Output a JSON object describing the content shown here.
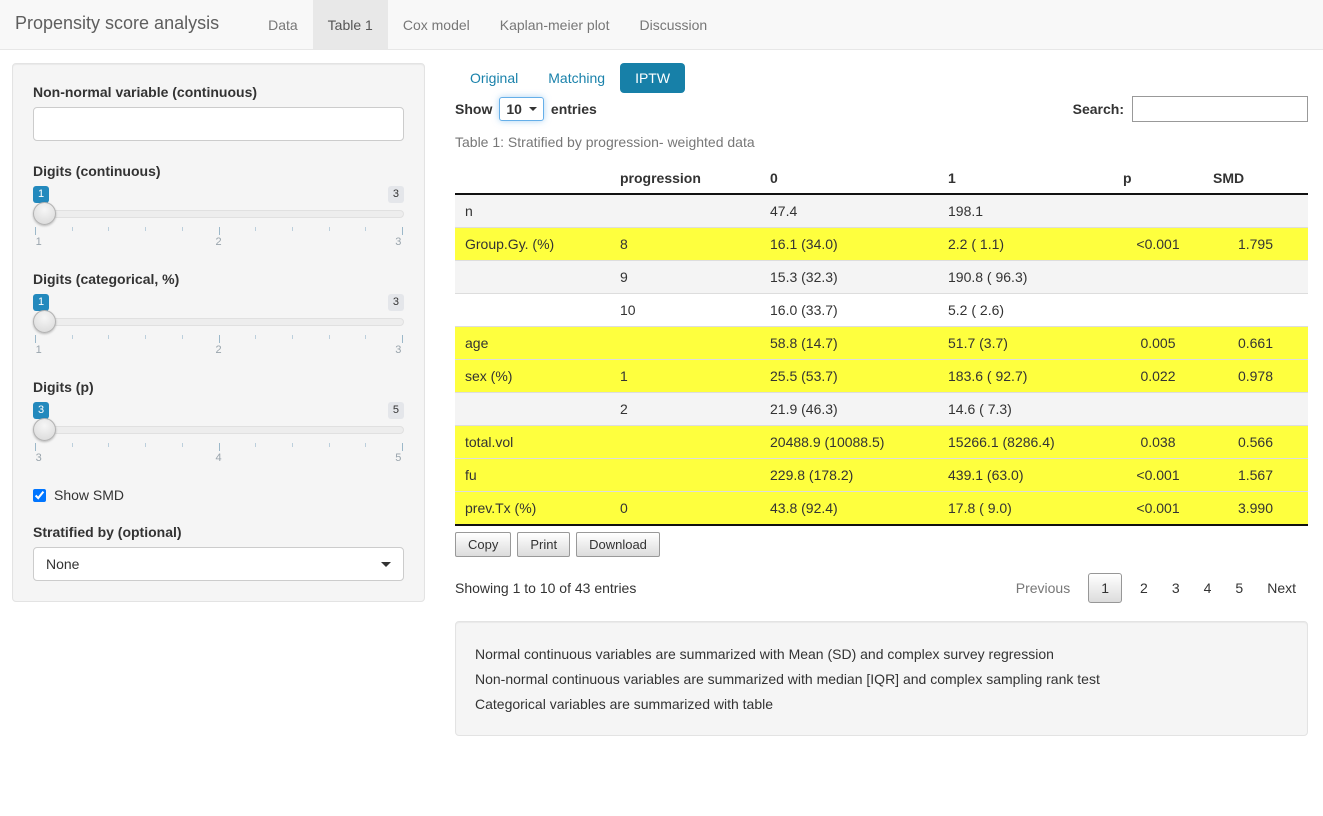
{
  "navbar": {
    "brand": "Propensity score analysis",
    "tabs": [
      {
        "label": "Data",
        "active": false
      },
      {
        "label": "Table 1",
        "active": true
      },
      {
        "label": "Cox model",
        "active": false
      },
      {
        "label": "Kaplan-meier plot",
        "active": false
      },
      {
        "label": "Discussion",
        "active": false
      }
    ]
  },
  "sidebar": {
    "nonnormal_label": "Non-normal variable (continuous)",
    "nonnormal_value": "",
    "sliders": [
      {
        "label": "Digits (continuous)",
        "value": "1",
        "max_badge": "3",
        "ticks": [
          "1",
          "2",
          "3"
        ]
      },
      {
        "label": "Digits (categorical, %)",
        "value": "1",
        "max_badge": "3",
        "ticks": [
          "1",
          "2",
          "3"
        ]
      },
      {
        "label": "Digits (p)",
        "value": "3",
        "max_badge": "5",
        "ticks": [
          "3",
          "4",
          "5"
        ]
      }
    ],
    "show_smd": {
      "label": "Show SMD",
      "checked": true
    },
    "stratified": {
      "label": "Stratified by (optional)",
      "value": "None"
    }
  },
  "main": {
    "tabs": [
      {
        "label": "Original",
        "active": false
      },
      {
        "label": "Matching",
        "active": false
      },
      {
        "label": "IPTW",
        "active": true
      }
    ],
    "length_control": {
      "prefix": "Show",
      "value": "10",
      "suffix": "entries"
    },
    "search": {
      "label": "Search:",
      "value": ""
    },
    "table": {
      "caption": "Table 1: Stratified by progression- weighted data",
      "columns": [
        "",
        "progression",
        "0",
        "1",
        "p",
        "SMD"
      ],
      "rows": [
        {
          "cells": [
            "n",
            "",
            "47.4",
            "198.1",
            "",
            ""
          ],
          "highlight": false
        },
        {
          "cells": [
            "Group.Gy. (%)",
            "8",
            "16.1 (34.0)",
            "2.2 ( 1.1)",
            "<0.001",
            "1.795"
          ],
          "highlight": true
        },
        {
          "cells": [
            "",
            "9",
            "15.3 (32.3)",
            "190.8 ( 96.3)",
            "",
            ""
          ],
          "highlight": false
        },
        {
          "cells": [
            "",
            "10",
            "16.0 (33.7)",
            "5.2 ( 2.6)",
            "",
            ""
          ],
          "highlight": false
        },
        {
          "cells": [
            "age",
            "",
            "58.8 (14.7)",
            "51.7 (3.7)",
            "0.005",
            "0.661"
          ],
          "highlight": true
        },
        {
          "cells": [
            "sex (%)",
            "1",
            "25.5 (53.7)",
            "183.6 ( 92.7)",
            "0.022",
            "0.978"
          ],
          "highlight": true
        },
        {
          "cells": [
            "",
            "2",
            "21.9 (46.3)",
            "14.6 ( 7.3)",
            "",
            ""
          ],
          "highlight": false
        },
        {
          "cells": [
            "total.vol",
            "",
            "20488.9 (10088.5)",
            "15266.1 (8286.4)",
            "0.038",
            "0.566"
          ],
          "highlight": true
        },
        {
          "cells": [
            "fu",
            "",
            "229.8 (178.2)",
            "439.1 (63.0)",
            "<0.001",
            "1.567"
          ],
          "highlight": true
        },
        {
          "cells": [
            "prev.Tx (%)",
            "0",
            "43.8 (92.4)",
            "17.8 ( 9.0)",
            "<0.001",
            "3.990"
          ],
          "highlight": true
        }
      ]
    },
    "buttons": [
      "Copy",
      "Print",
      "Download"
    ],
    "info": "Showing 1 to 10 of 43 entries",
    "pagination": {
      "previous": "Previous",
      "pages": [
        "1",
        "2",
        "3",
        "4",
        "5"
      ],
      "current": "1",
      "next": "Next"
    },
    "footnotes": [
      "Normal continuous variables are summarized with Mean (SD) and complex survey regression",
      "Non-normal continuous variables are summarized with median [IQR] and complex sampling rank test",
      "Categorical variables are summarized with table"
    ]
  },
  "colors": {
    "accent_blue": "#1780a8",
    "slider_badge_blue": "#2389bd",
    "highlight_yellow": "#feff3e",
    "stripe_gray": "#f4f4f4",
    "navbar_bg": "#f8f8f8",
    "active_tab_bg": "#e8e8e8",
    "well_bg": "#f5f5f5"
  }
}
